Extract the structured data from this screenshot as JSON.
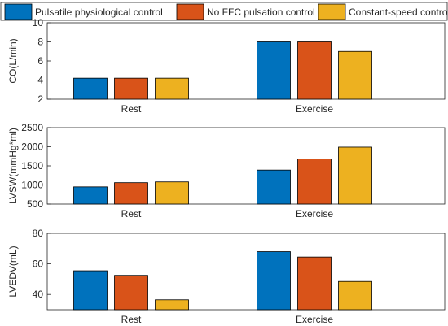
{
  "legend": {
    "placement": "top",
    "items": [
      {
        "name": "Pulsatile physiological control",
        "color": "#0072BD"
      },
      {
        "name": "No FFC pulsation control",
        "color": "#D95319"
      },
      {
        "name": "Constant-speed control",
        "color": "#EDB120"
      }
    ]
  },
  "chart_data": [
    {
      "type": "bar",
      "categories": [
        "Rest",
        "Exercise"
      ],
      "ylabel": "CO(L/min)",
      "ylim": [
        2,
        10
      ],
      "yticks": [
        2,
        4,
        6,
        8,
        10
      ],
      "grid": false,
      "series": [
        {
          "name": "Pulsatile physiological control",
          "values": [
            4.2,
            8.0
          ]
        },
        {
          "name": "No FFC pulsation control",
          "values": [
            4.2,
            8.0
          ]
        },
        {
          "name": "Constant-speed control",
          "values": [
            4.2,
            7.0
          ]
        }
      ]
    },
    {
      "type": "bar",
      "categories": [
        "Rest",
        "Exercise"
      ],
      "ylabel": "LVSW(mmHg*ml)",
      "ylim": [
        500,
        2500
      ],
      "yticks": [
        500,
        1000,
        1500,
        2000,
        2500
      ],
      "grid": false,
      "series": [
        {
          "name": "Pulsatile physiological control",
          "values": [
            950,
            1390
          ]
        },
        {
          "name": "No FFC pulsation control",
          "values": [
            1060,
            1680
          ]
        },
        {
          "name": "Constant-speed control",
          "values": [
            1080,
            1990
          ]
        }
      ]
    },
    {
      "type": "bar",
      "categories": [
        "Rest",
        "Exercise"
      ],
      "ylabel": "LVEDV(mL)",
      "ylim": [
        30,
        80
      ],
      "yticks": [
        40,
        60,
        80
      ],
      "grid": false,
      "series": [
        {
          "name": "Pulsatile physiological control",
          "values": [
            55.5,
            68
          ]
        },
        {
          "name": "No FFC pulsation control",
          "values": [
            52.5,
            64.5
          ]
        },
        {
          "name": "Constant-speed control",
          "values": [
            36.5,
            48.5
          ]
        }
      ]
    }
  ]
}
